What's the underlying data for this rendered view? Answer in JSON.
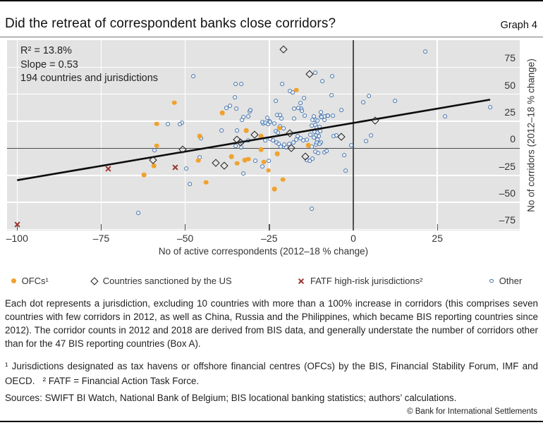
{
  "header": {
    "title": "Did the retreat of correspondent banks close corridors?",
    "graph_label": "Graph 4"
  },
  "chart_data": {
    "type": "scatter",
    "title": "Did the retreat of correspondent banks close corridors?",
    "xlabel": "No of active correspondents (2012–18 % change)",
    "ylabel": "No of corridors (2012–18 % change)",
    "xlim": [
      -103,
      49.5
    ],
    "ylim": [
      -76,
      100
    ],
    "grid": "on",
    "annotation": [
      "R² = 13.8%",
      "Slope = 0.53",
      "194 countries and jurisdictions"
    ],
    "regression": {
      "r_squared_pct": 13.8,
      "slope": 0.53,
      "n": 194
    },
    "x_ticks": [
      {
        "v": -100,
        "label": "–100"
      },
      {
        "v": -75,
        "label": "–75"
      },
      {
        "v": -50,
        "label": "–50"
      },
      {
        "v": -25,
        "label": "–25"
      },
      {
        "v": 0,
        "label": "0"
      },
      {
        "v": 25,
        "label": "25"
      }
    ],
    "y_ticks": [
      {
        "v": 75,
        "label": "75"
      },
      {
        "v": 50,
        "label": "50"
      },
      {
        "v": 25,
        "label": "25"
      },
      {
        "v": 0,
        "label": "0"
      },
      {
        "v": -25,
        "label": "–25"
      },
      {
        "v": -50,
        "label": "–50"
      },
      {
        "v": -75,
        "label": "–75"
      }
    ],
    "trend_line": {
      "x1": -100,
      "y1": -29.5,
      "x2": 40.7,
      "y2": 45.0
    },
    "series": [
      {
        "name": "OFCs¹",
        "marker": "orange-dot",
        "color": "#f0a22e",
        "points": [
          [
            -53.2,
            42.1
          ],
          [
            -58.5,
            22.5
          ],
          [
            -17.0,
            53.8
          ],
          [
            -39.0,
            32.9
          ],
          [
            -22.0,
            18.6
          ],
          [
            -27.5,
            11.4
          ],
          [
            -45.7,
            11.4
          ],
          [
            -58.5,
            2.3
          ],
          [
            -59.3,
            -16.0
          ],
          [
            -62.3,
            -24.5
          ],
          [
            -46.1,
            -11.4
          ],
          [
            -43.8,
            -31.6
          ],
          [
            -36.3,
            -7.5
          ],
          [
            -34.6,
            -14.0
          ],
          [
            -32.3,
            -10.8
          ],
          [
            -31.2,
            -10.1
          ],
          [
            -27.5,
            -1.0
          ],
          [
            -26.6,
            -12.7
          ],
          [
            -25.2,
            -20.5
          ],
          [
            -22.6,
            -4.9
          ],
          [
            -21.0,
            -29.0
          ],
          [
            -23.5,
            -37.5
          ],
          [
            -13.4,
            2.9
          ],
          [
            -31.9,
            16.6
          ]
        ]
      },
      {
        "name": "Countries sanctioned by the US",
        "marker": "open-diamond",
        "color": "#1c1c1c",
        "points": [
          [
            -20.8,
            91.6
          ],
          [
            -13.0,
            68.8
          ],
          [
            6.5,
            25.8
          ],
          [
            -29.4,
            12.7
          ],
          [
            -18.9,
            14.0
          ],
          [
            -34.6,
            8.2
          ],
          [
            -33.5,
            5.5
          ],
          [
            -50.7,
            -1.0
          ],
          [
            -18.4,
            0.3
          ],
          [
            -3.6,
            10.8
          ],
          [
            -59.5,
            -10.8
          ],
          [
            -40.9,
            -13.4
          ],
          [
            -38.4,
            -16.0
          ],
          [
            -14.3,
            -7.5
          ]
        ]
      },
      {
        "name": "FATF high-risk jurisdictions²",
        "marker": "red-x",
        "color": "#9c3530",
        "points": [
          [
            -100.0,
            -70.1
          ],
          [
            -73.0,
            -18.6
          ],
          [
            -53.0,
            -17.9
          ]
        ]
      },
      {
        "name": "Other",
        "marker": "open-circle",
        "color": "#4576b2",
        "points": [
          [
            -47.6,
            66.9
          ],
          [
            -35.0,
            59.7
          ],
          [
            -33.3,
            59.7
          ],
          [
            -21.2,
            59.7
          ],
          [
            -11.3,
            70.1
          ],
          [
            -9.2,
            62.3
          ],
          [
            -6.3,
            66.9
          ],
          [
            -18.9,
            53.2
          ],
          [
            -18.0,
            51.9
          ],
          [
            -35.2,
            47.3
          ],
          [
            -23.1,
            44.0
          ],
          [
            -14.7,
            46.6
          ],
          [
            -6.5,
            49.2
          ],
          [
            21.4,
            89.7
          ],
          [
            4.6,
            48.6
          ],
          [
            2.9,
            42.7
          ],
          [
            12.4,
            44.0
          ],
          [
            40.7,
            38.2
          ],
          [
            27.3,
            29.7
          ],
          [
            -37.7,
            37.5
          ],
          [
            -36.7,
            39.5
          ],
          [
            -34.8,
            36.9
          ],
          [
            -30.8,
            34.2
          ],
          [
            -32.7,
            29.0
          ],
          [
            -31.2,
            29.7
          ],
          [
            -15.7,
            42.1
          ],
          [
            -15.5,
            36.9
          ],
          [
            -15.3,
            34.9
          ],
          [
            -9.6,
            33.6
          ],
          [
            -7.8,
            30.3
          ],
          [
            -3.6,
            35.6
          ],
          [
            -50.9,
            23.8
          ],
          [
            -55.1,
            22.5
          ],
          [
            -51.6,
            22.5
          ],
          [
            -39.2,
            16.6
          ],
          [
            -26.8,
            23.2
          ],
          [
            -25.6,
            28.4
          ],
          [
            -24.9,
            25.1
          ],
          [
            -30.6,
            35.6
          ],
          [
            -33.1,
            26.4
          ],
          [
            -17.6,
            36.9
          ],
          [
            -16.4,
            37.5
          ],
          [
            -14.5,
            30.3
          ],
          [
            -17.6,
            27.7
          ],
          [
            -11.7,
            29.7
          ],
          [
            -11.3,
            26.4
          ],
          [
            -9.6,
            29.7
          ],
          [
            -8.6,
            29.7
          ],
          [
            -7.5,
            30.3
          ],
          [
            -22.6,
            31.0
          ],
          [
            -21.8,
            31.0
          ],
          [
            -21.4,
            27.7
          ],
          [
            -6.1,
            30.3
          ],
          [
            -9.4,
            29.0
          ],
          [
            -27.0,
            24.5
          ],
          [
            -26.2,
            23.8
          ],
          [
            -25.4,
            22.5
          ],
          [
            -24.7,
            24.5
          ],
          [
            -23.5,
            23.2
          ],
          [
            -21.8,
            20.5
          ],
          [
            -20.8,
            18.6
          ],
          [
            -23.1,
            16.0
          ],
          [
            -22.4,
            14.7
          ],
          [
            -34.6,
            16.6
          ],
          [
            -12.2,
            26.4
          ],
          [
            -10.7,
            25.8
          ],
          [
            -8.6,
            26.4
          ],
          [
            -12.4,
            21.2
          ],
          [
            -11.3,
            21.9
          ],
          [
            -10.9,
            19.2
          ],
          [
            -10.1,
            19.9
          ],
          [
            -11.5,
            15.3
          ],
          [
            -10.7,
            14.7
          ],
          [
            -9.9,
            16.0
          ],
          [
            -11.1,
            12.1
          ],
          [
            -10.3,
            11.4
          ],
          [
            -5.9,
            11.4
          ],
          [
            -5.0,
            12.1
          ],
          [
            -16.6,
            11.4
          ],
          [
            -15.7,
            9.5
          ],
          [
            -12.8,
            12.7
          ],
          [
            -11.7,
            10.1
          ],
          [
            5.2,
            12.1
          ],
          [
            3.8,
            6.8
          ],
          [
            -24.7,
            8.8
          ],
          [
            -23.9,
            7.5
          ],
          [
            -26.2,
            7.5
          ],
          [
            -22.9,
            5.5
          ],
          [
            -22.2,
            4.2
          ],
          [
            -21.6,
            1.6
          ],
          [
            -20.5,
            3.6
          ],
          [
            -19.9,
            1.0
          ],
          [
            -19.1,
            4.2
          ],
          [
            -17.8,
            5.5
          ],
          [
            -17.0,
            8.2
          ],
          [
            -14.9,
            7.5
          ],
          [
            -13.8,
            8.2
          ],
          [
            -10.7,
            8.2
          ],
          [
            -9.6,
            5.5
          ],
          [
            -11.1,
            3.6
          ],
          [
            -12.4,
            1.6
          ],
          [
            -10.9,
            5.5
          ],
          [
            -10.1,
            4.2
          ],
          [
            -0.6,
            2.9
          ],
          [
            -31.2,
            7.5
          ],
          [
            -33.1,
            5.5
          ],
          [
            -35.0,
            2.3
          ],
          [
            -33.3,
            1.0
          ],
          [
            -45.3,
            9.5
          ],
          [
            -59.1,
            -1.6
          ],
          [
            -11.3,
            -2.9
          ],
          [
            -10.5,
            -4.2
          ],
          [
            -8.6,
            -3.6
          ],
          [
            -8.0,
            -2.3
          ],
          [
            -2.7,
            -6.2
          ],
          [
            -45.7,
            -8.2
          ],
          [
            -12.2,
            -9.5
          ],
          [
            -13.8,
            -10.8
          ],
          [
            -13.0,
            -11.4
          ],
          [
            -29.1,
            -11.4
          ],
          [
            -25.2,
            -11.4
          ],
          [
            -27.0,
            -16.6
          ],
          [
            -49.7,
            -18.6
          ],
          [
            -32.7,
            -23.2
          ],
          [
            -48.6,
            -32.9
          ],
          [
            -2.3,
            -20.5
          ],
          [
            -12.4,
            -55.8
          ],
          [
            -63.9,
            -59.7
          ]
        ]
      }
    ],
    "legend_position": "bottom"
  },
  "legend": {
    "items": [
      {
        "label": "OFCs¹",
        "marker": "orange-dot"
      },
      {
        "label": "Countries sanctioned by the US",
        "marker": "open-diamond"
      },
      {
        "label": "FATF high-risk jurisdictions²",
        "marker": "red-x"
      },
      {
        "label": "Other",
        "marker": "open-circle"
      }
    ]
  },
  "notes": {
    "body": "Each dot represents a jurisdiction, excluding 10 countries with more than a 100% increase in corridors (this comprises seven countries with few corridors in 2012, as well as China, Russia and the Philippines, which became BIS reporting countries since 2012). The corridor counts in 2012 and 2018 are derived from BIS data, and generally understate the number of corridors other than for the 47 BIS reporting countries (Box A).",
    "footnotes": "¹ Jurisdictions designated as tax havens or offshore financial centres (OFCs) by the BIS, Financial Stability Forum, IMF and OECD.   ² FATF = Financial Action Task Force.",
    "sources": "Sources: SWIFT BI Watch, National Bank of Belgium; BIS locational banking statistics; authors’ calculations."
  },
  "footer": {
    "copyright": "© Bank for International Settlements"
  }
}
